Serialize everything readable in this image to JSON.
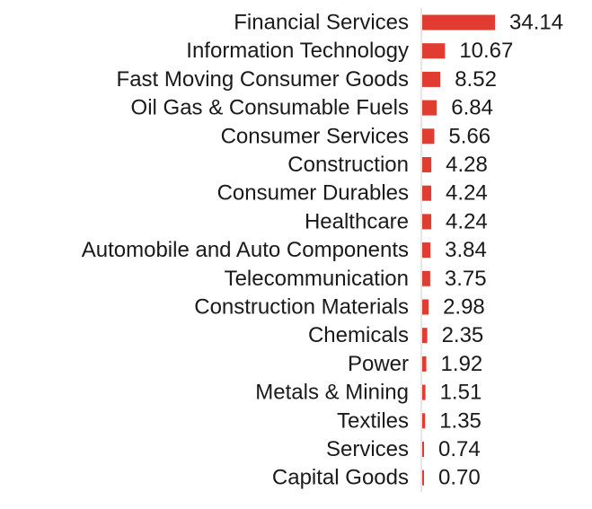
{
  "chart_data": {
    "type": "bar",
    "orientation": "horizontal",
    "categories": [
      "Financial Services",
      "Information Technology",
      "Fast Moving Consumer Goods",
      "Oil Gas & Consumable Fuels",
      "Consumer Services",
      "Construction",
      "Consumer Durables",
      "Healthcare",
      "Automobile and Auto Components",
      "Telecommunication",
      "Construction Materials",
      "Chemicals",
      "Power",
      "Metals & Mining",
      "Textiles",
      "Services",
      "Capital Goods"
    ],
    "values": [
      34.14,
      10.67,
      8.52,
      6.84,
      5.66,
      4.28,
      4.24,
      4.24,
      3.84,
      3.75,
      2.98,
      2.35,
      1.92,
      1.51,
      1.35,
      0.74,
      0.7
    ],
    "value_labels": [
      "34.14",
      "10.67",
      "8.52",
      "6.84",
      "5.66",
      "4.28",
      "4.24",
      "4.24",
      "3.84",
      "3.75",
      "2.98",
      "2.35",
      "1.92",
      "1.51",
      "1.35",
      "0.74",
      "0.70"
    ],
    "title": "",
    "xlabel": "",
    "ylabel": "",
    "xlim": [
      0,
      34.14
    ],
    "grid": false,
    "legend": "none",
    "bar_color": "#e03c31",
    "axis_color": "#cccccc"
  }
}
